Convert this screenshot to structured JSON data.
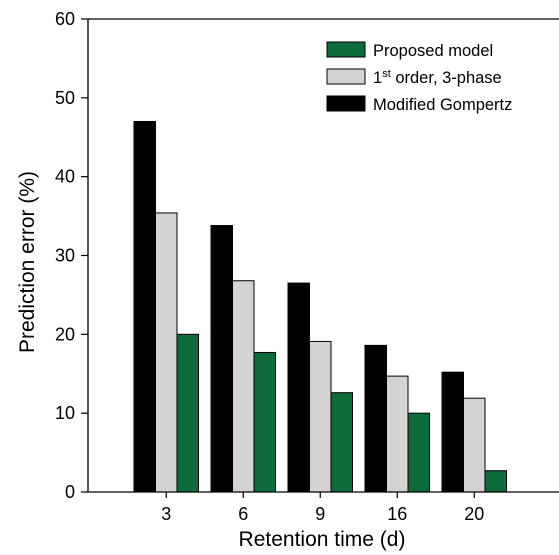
{
  "chart_data": {
    "type": "bar",
    "title": "",
    "xlabel": "Retention time (d)",
    "ylabel": "Prediction error (%)",
    "ylim": [
      0,
      60
    ],
    "yticks": [
      0,
      10,
      20,
      30,
      40,
      50,
      60
    ],
    "categories": [
      "3",
      "6",
      "9",
      "16",
      "20"
    ],
    "grid": false,
    "legend_position": "top-right",
    "series": [
      {
        "key": "gompertz",
        "name": "Modified Gompertz",
        "color": "#000000",
        "values": [
          47.0,
          33.8,
          26.5,
          18.6,
          15.2
        ]
      },
      {
        "key": "first_order",
        "name": "1st order, 3-phase",
        "legend_parts": [
          "1",
          "st",
          " order, 3-phase"
        ],
        "color": "#d3d3d3",
        "values": [
          35.4,
          26.8,
          19.1,
          14.7,
          11.9
        ]
      },
      {
        "key": "proposed",
        "name": "Proposed model",
        "color": "#0e6b3a",
        "values": [
          20.0,
          17.7,
          12.6,
          10.0,
          2.7
        ]
      }
    ],
    "legend_order": [
      "proposed",
      "first_order",
      "gompertz"
    ]
  }
}
